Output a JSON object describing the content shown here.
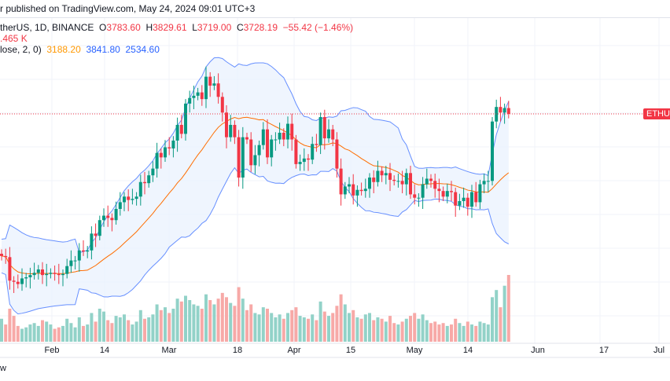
{
  "header": {
    "published": "r published on TradingView.com, May 24, 2024 09:01 UTC+3"
  },
  "legend": {
    "symbol": "therUS, 1D, BINANCE",
    "o_label": "O",
    "o": "3783.60",
    "h_label": "H",
    "h": "3829.61",
    "l_label": "L",
    "l": "3719.00",
    "c_label": "C",
    "c": "3728.19",
    "change": "−55.42 (−1.46%)",
    "volume": ".465 K",
    "bb_label": "lose, 2, 0)",
    "bb_basis": "3188.20",
    "bb_upper": "3841.80",
    "bb_lower": "2534.60"
  },
  "price_tag": "ETHUS",
  "footer": "w",
  "chart_data": {
    "type": "candlestick",
    "x_ticks": [
      "Feb",
      "14",
      "Mar",
      "18",
      "Apr",
      "15",
      "May",
      "14",
      "Jun",
      "17",
      "Jul"
    ],
    "last_close": 3728.19,
    "colors": {
      "up": "#089981",
      "down": "#f23645",
      "up_volume": "#92d2c8",
      "down_volume": "#f7a9a7",
      "bb_basis": "#ff6d00",
      "bb_band": "#2962ff",
      "bb_fill": "#e8f1fd"
    },
    "indicators": [
      "Bollinger Bands (20, 2)",
      "Volume"
    ],
    "closes": [
      2460,
      2450,
      2240,
      2230,
      2210,
      2260,
      2270,
      2290,
      2310,
      2340,
      2290,
      2300,
      2310,
      2300,
      2290,
      2300,
      2370,
      2420,
      2420,
      2510,
      2500,
      2510,
      2660,
      2640,
      2780,
      2820,
      2800,
      2780,
      2880,
      2940,
      2990,
      2960,
      2970,
      2990,
      3120,
      3110,
      3180,
      3240,
      3380,
      3340,
      3430,
      3420,
      3490,
      3630,
      3550,
      3820,
      3870,
      3890,
      3920,
      3860,
      4060,
      3980,
      4000,
      3880,
      3740,
      3520,
      3630,
      3520,
      3160,
      3520,
      3500,
      3270,
      3360,
      3450,
      3590,
      3340,
      3500,
      3500,
      3560,
      3500,
      3640,
      3500,
      3280,
      3300,
      3330,
      3320,
      3460,
      3450,
      3700,
      3510,
      3590,
      3500,
      3240,
      3010,
      3080,
      3100,
      3000,
      3050,
      3040,
      3060,
      3160,
      3120,
      3220,
      3180,
      3200,
      3140,
      3130,
      3130,
      3100,
      3200,
      3010,
      2980,
      2980,
      3100,
      3150,
      3130,
      3060,
      3040,
      2990,
      3040,
      3030,
      2910,
      2950,
      2980,
      2900,
      3030,
      2940,
      3100,
      3130,
      3130,
      3660,
      3790,
      3740,
      3780,
      3728.19
    ],
    "volumes_k": [
      160,
      120,
      230,
      180,
      110,
      90,
      100,
      120,
      130,
      110,
      150,
      140,
      120,
      90,
      100,
      110,
      160,
      130,
      100,
      170,
      110,
      120,
      200,
      140,
      230,
      210,
      150,
      130,
      180,
      170,
      190,
      150,
      120,
      140,
      220,
      160,
      170,
      190,
      260,
      220,
      240,
      200,
      230,
      300,
      280,
      320,
      290,
      260,
      250,
      230,
      330,
      290,
      260,
      300,
      340,
      310,
      270,
      250,
      380,
      300,
      220,
      260,
      200,
      190,
      240,
      230,
      200,
      170,
      190,
      160,
      200,
      220,
      240,
      180,
      170,
      160,
      190,
      150,
      280,
      210,
      180,
      200,
      250,
      330,
      260,
      200,
      220,
      170,
      160,
      190,
      200,
      150,
      170,
      160,
      140,
      180,
      130,
      120,
      140,
      160,
      180,
      200,
      160,
      190,
      150,
      130,
      140,
      120,
      130,
      110,
      120,
      160,
      130,
      110,
      140,
      120,
      110,
      140,
      130,
      120,
      310,
      360,
      240,
      390,
      465
    ]
  }
}
